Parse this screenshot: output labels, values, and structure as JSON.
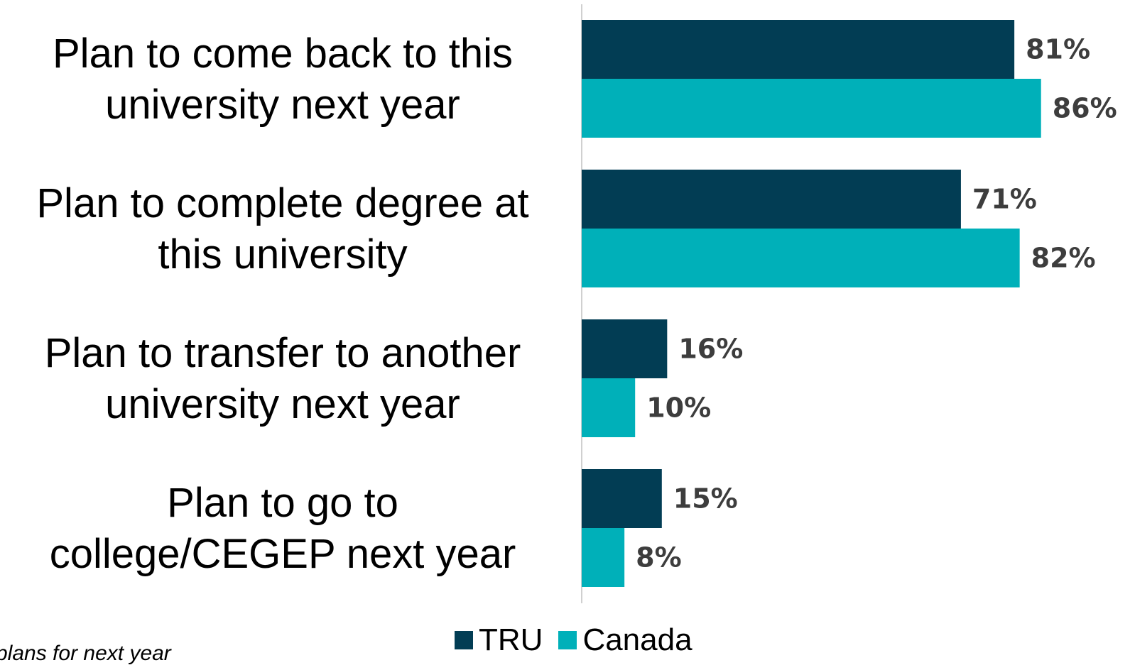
{
  "chart_data": {
    "type": "bar",
    "orientation": "horizontal",
    "categories": [
      [
        "Plan to come back to this",
        "university next year"
      ],
      [
        "Plan to complete degree at",
        "this university"
      ],
      [
        "Plan to transfer to another",
        "university next year"
      ],
      [
        "Plan to go to",
        "college/CEGEP next year"
      ]
    ],
    "series": [
      {
        "name": "TRU",
        "color": "#023d54",
        "values": [
          81,
          71,
          16,
          15
        ],
        "labels": [
          "81%",
          "71%",
          "16%",
          "15%"
        ]
      },
      {
        "name": "Canada",
        "color": "#00b0b9",
        "values": [
          86,
          82,
          10,
          8
        ],
        "labels": [
          "86%",
          "82%",
          "10%",
          "8%"
        ]
      }
    ],
    "legend_position": "bottom",
    "grid": false,
    "value_labels": true
  },
  "footnote": "plans for next year"
}
